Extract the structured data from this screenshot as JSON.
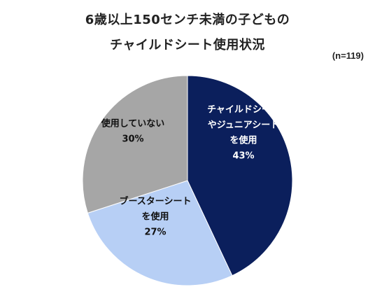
{
  "chart_data": {
    "type": "pie",
    "title_lines": [
      "6歳以上150センチ未満の子どもの",
      "チャイルドシート使用状況"
    ],
    "note": "(n=119)",
    "slices": [
      {
        "label_lines": [
          "チャイルドシート",
          "やジュニアシート",
          "を使用"
        ],
        "value": 43,
        "value_label": "43%",
        "color": "#0b1f5c",
        "text_color": "#ffffff"
      },
      {
        "label_lines": [
          "ブースターシート",
          "を使用"
        ],
        "value": 27,
        "value_label": "27%",
        "color": "#b7cff5",
        "text_color": "#111111"
      },
      {
        "label_lines": [
          "使用していない"
        ],
        "value": 30,
        "value_label": "30%",
        "color": "#a6a6a6",
        "text_color": "#111111"
      }
    ]
  }
}
